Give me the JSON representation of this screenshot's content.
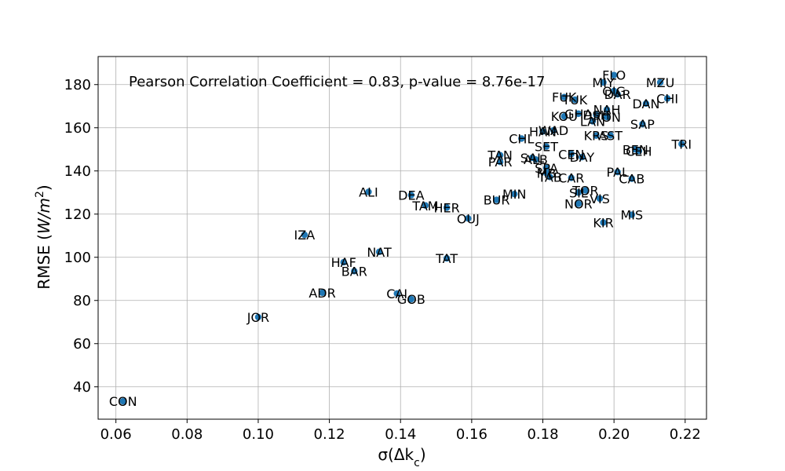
{
  "chart_data": {
    "type": "scatter",
    "title": "",
    "annotation": "Pearson Correlation Coefficient = 0.83, p-value = 8.76e-17",
    "xlabel": "σ(Δk",
    "xlabel_sub": "c",
    "xlabel_end": ")",
    "ylabel": "RMSE (",
    "ylabel_var": "W/m",
    "ylabel_sup": "2",
    "ylabel_end": ")",
    "xlim": [
      0.055,
      0.226
    ],
    "ylim": [
      25,
      193
    ],
    "grid": true,
    "marker_color": "#1f77b4",
    "x_ticks": [
      {
        "value": 0.06,
        "label": "0.06"
      },
      {
        "value": 0.08,
        "label": "0.08"
      },
      {
        "value": 0.1,
        "label": "0.10"
      },
      {
        "value": 0.12,
        "label": "0.12"
      },
      {
        "value": 0.14,
        "label": "0.14"
      },
      {
        "value": 0.16,
        "label": "0.16"
      },
      {
        "value": 0.18,
        "label": "0.18"
      },
      {
        "value": 0.2,
        "label": "0.20"
      },
      {
        "value": 0.22,
        "label": "0.22"
      }
    ],
    "y_ticks": [
      {
        "value": 40,
        "label": "40"
      },
      {
        "value": 60,
        "label": "60"
      },
      {
        "value": 80,
        "label": "80"
      },
      {
        "value": 100,
        "label": "100"
      },
      {
        "value": 120,
        "label": "120"
      },
      {
        "value": 140,
        "label": "140"
      },
      {
        "value": 160,
        "label": "160"
      },
      {
        "value": 180,
        "label": "180"
      }
    ],
    "points": [
      {
        "label": "CON",
        "x": 0.062,
        "y": 33.3
      },
      {
        "label": "JOR",
        "x": 0.1,
        "y": 72.3
      },
      {
        "label": "IZA",
        "x": 0.113,
        "y": 110.4
      },
      {
        "label": "ADR",
        "x": 0.118,
        "y": 83.6
      },
      {
        "label": "HAF",
        "x": 0.124,
        "y": 97.7
      },
      {
        "label": "BAR",
        "x": 0.127,
        "y": 93.6
      },
      {
        "label": "ALI",
        "x": 0.131,
        "y": 130.3
      },
      {
        "label": "NAT",
        "x": 0.134,
        "y": 102.5
      },
      {
        "label": "CAI",
        "x": 0.139,
        "y": 83.2
      },
      {
        "label": "GOB",
        "x": 0.143,
        "y": 80.6
      },
      {
        "label": "DEA",
        "x": 0.143,
        "y": 128.8
      },
      {
        "label": "TAM",
        "x": 0.147,
        "y": 124.0
      },
      {
        "label": "HER",
        "x": 0.153,
        "y": 123.0
      },
      {
        "label": "TAT",
        "x": 0.153,
        "y": 99.5
      },
      {
        "label": "OUJ",
        "x": 0.159,
        "y": 118.0
      },
      {
        "label": "BUR",
        "x": 0.167,
        "y": 126.6
      },
      {
        "label": "TAN",
        "x": 0.168,
        "y": 147.3
      },
      {
        "label": "PAR",
        "x": 0.168,
        "y": 144.2
      },
      {
        "label": "MIN",
        "x": 0.172,
        "y": 129.3
      },
      {
        "label": "CHL",
        "x": 0.174,
        "y": 155.0
      },
      {
        "label": "SAL",
        "x": 0.177,
        "y": 146.1
      },
      {
        "label": "ALB",
        "x": 0.178,
        "y": 145.3
      },
      {
        "label": "HAN",
        "x": 0.18,
        "y": 158.3
      },
      {
        "label": "SET",
        "x": 0.181,
        "y": 151.3
      },
      {
        "label": "SPA",
        "x": 0.181,
        "y": 141.4
      },
      {
        "label": "MB",
        "x": 0.181,
        "y": 139.0
      },
      {
        "label": "TAB",
        "x": 0.182,
        "y": 137.2
      },
      {
        "label": "WAD",
        "x": 0.183,
        "y": 158.8
      },
      {
        "label": "KOU",
        "x": 0.186,
        "y": 165.3
      },
      {
        "label": "FUK",
        "x": 0.186,
        "y": 174.2
      },
      {
        "label": "CAR",
        "x": 0.188,
        "y": 136.8
      },
      {
        "label": "CEN",
        "x": 0.188,
        "y": 147.8
      },
      {
        "label": "TUK",
        "x": 0.189,
        "y": 173.0
      },
      {
        "label": "GHA",
        "x": 0.19,
        "y": 166.5
      },
      {
        "label": "SIL",
        "x": 0.19,
        "y": 130.0
      },
      {
        "label": "NOR",
        "x": 0.19,
        "y": 124.8
      },
      {
        "label": "DAY",
        "x": 0.191,
        "y": 146.4
      },
      {
        "label": "TOR",
        "x": 0.192,
        "y": 131.0
      },
      {
        "label": "LAN",
        "x": 0.194,
        "y": 163.0
      },
      {
        "label": "DSH",
        "x": 0.195,
        "y": 166.0
      },
      {
        "label": "KRS",
        "x": 0.195,
        "y": 156.4
      },
      {
        "label": "VIS",
        "x": 0.196,
        "y": 127.2
      },
      {
        "label": "KIR",
        "x": 0.197,
        "y": 116.1
      },
      {
        "label": "MIY",
        "x": 0.197,
        "y": 181.0
      },
      {
        "label": "NAH",
        "x": 0.198,
        "y": 168.4
      },
      {
        "label": "RON",
        "x": 0.198,
        "y": 165.0
      },
      {
        "label": "AST",
        "x": 0.199,
        "y": 156.5
      },
      {
        "label": "FLO",
        "x": 0.2,
        "y": 184.4
      },
      {
        "label": "QIG",
        "x": 0.2,
        "y": 177.0
      },
      {
        "label": "DAR",
        "x": 0.201,
        "y": 175.5
      },
      {
        "label": "PAL",
        "x": 0.201,
        "y": 139.5
      },
      {
        "label": "MIS",
        "x": 0.205,
        "y": 119.7
      },
      {
        "label": "CAB",
        "x": 0.205,
        "y": 136.4
      },
      {
        "label": "BEN",
        "x": 0.206,
        "y": 150.0
      },
      {
        "label": "CEH",
        "x": 0.207,
        "y": 149.2
      },
      {
        "label": "SAP",
        "x": 0.208,
        "y": 161.7
      },
      {
        "label": "DAN",
        "x": 0.209,
        "y": 171.2
      },
      {
        "label": "MZU",
        "x": 0.213,
        "y": 181.0
      },
      {
        "label": "CHI",
        "x": 0.215,
        "y": 173.6
      },
      {
        "label": "TRI",
        "x": 0.219,
        "y": 152.5
      }
    ]
  }
}
